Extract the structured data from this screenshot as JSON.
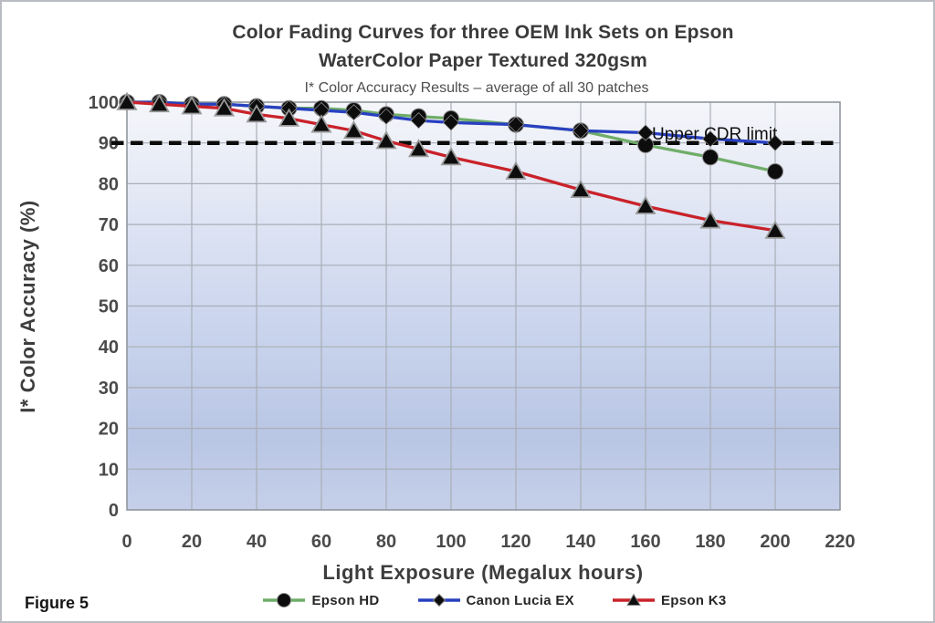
{
  "figure": {
    "label": "Figure 5"
  },
  "chart_data": {
    "type": "line",
    "title_lines": [
      "Color Fading Curves for three OEM Ink Sets on Epson",
      "WaterColor Paper Textured 320gsm"
    ],
    "subtitle": "I* Color Accuracy Results – average  of all 30 patches",
    "xlabel": "Light Exposure (Megalux  hours)",
    "ylabel": "I* Color Accuracy (%)",
    "xlim": [
      0,
      220
    ],
    "xtick_step": 20,
    "ylim": [
      0,
      100
    ],
    "ytick_step": 10,
    "grid": true,
    "legend_position": "bottom",
    "x": [
      0,
      10,
      20,
      30,
      40,
      50,
      60,
      70,
      80,
      90,
      100,
      120,
      140,
      160,
      180,
      200
    ],
    "series": [
      {
        "name": "Epson HD",
        "color": "#6FAD68",
        "marker": "circle",
        "values": [
          100,
          100,
          99.5,
          99.5,
          99,
          98.5,
          98.5,
          98,
          97,
          96.5,
          96,
          94.5,
          93,
          89.5,
          86.5,
          83
        ]
      },
      {
        "name": "Canon Lucia EX",
        "color": "#2840C0",
        "marker": "diamond",
        "values": [
          100,
          100,
          99.5,
          99.5,
          99,
          98.5,
          98,
          97.5,
          96.5,
          95.5,
          95,
          94.5,
          93,
          92.5,
          91,
          90
        ]
      },
      {
        "name": "Epson K3",
        "color": "#C9222A",
        "marker": "triangle",
        "values": [
          100,
          99.5,
          99,
          98.5,
          97,
          96,
          94.5,
          93,
          90.5,
          88.5,
          86.5,
          83,
          78.5,
          74.5,
          71,
          68.5
        ]
      }
    ],
    "marker_color": "#0d0d0d",
    "reference_line": {
      "label": "Upper CDR limit",
      "value": 90,
      "style": "dashed",
      "color": "#0b0b0b"
    },
    "plot_background_gradient": [
      "#f5f6fa",
      "#ccd6ee",
      "#b9c6e4",
      "#c5cfe9"
    ],
    "gridline_color": "#a9aeb6"
  }
}
